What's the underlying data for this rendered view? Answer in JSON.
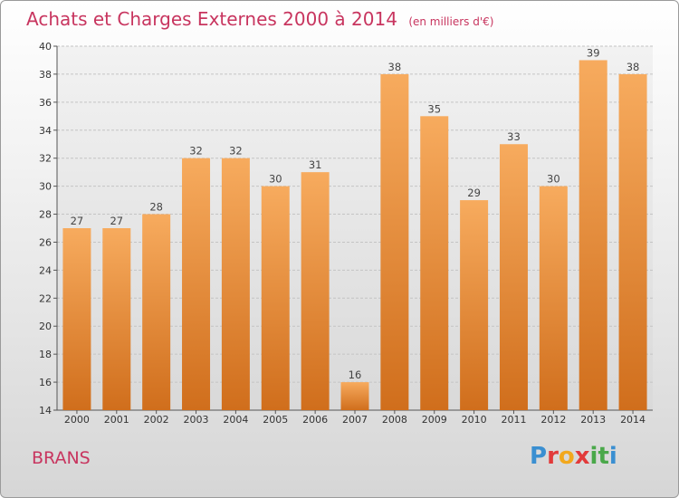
{
  "header": {
    "title": "Achats et Charges Externes 2000 à 2014",
    "subtitle": "(en milliers d'€)"
  },
  "footer": {
    "place": "BRANS",
    "brand": "Proxiti"
  },
  "colors": {
    "bar_light": "#f6a85a",
    "bar_dark": "#d06e1c",
    "title": "#c8355f"
  },
  "chart_data": {
    "type": "bar",
    "title": "Achats et Charges Externes 2000 à 2014",
    "subtitle": "(en milliers d'€)",
    "categories": [
      "2000",
      "2001",
      "2002",
      "2003",
      "2004",
      "2005",
      "2006",
      "2007",
      "2008",
      "2009",
      "2010",
      "2011",
      "2012",
      "2013",
      "2014"
    ],
    "values": [
      27,
      27,
      28,
      32,
      32,
      30,
      31,
      16,
      38,
      35,
      29,
      33,
      30,
      39,
      38
    ],
    "ylim": [
      14,
      40
    ],
    "yticks": [
      14,
      16,
      18,
      20,
      22,
      24,
      26,
      28,
      30,
      32,
      34,
      36,
      38,
      40
    ],
    "grid": "horizontal",
    "xlabel": "",
    "ylabel": ""
  }
}
